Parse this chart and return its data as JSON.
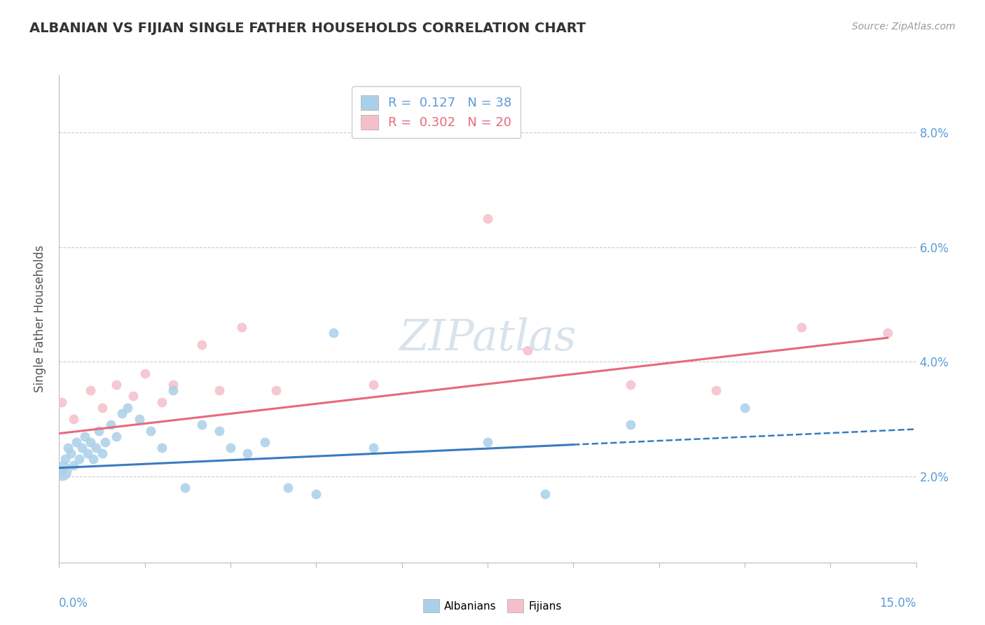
{
  "title": "ALBANIAN VS FIJIAN SINGLE FATHER HOUSEHOLDS CORRELATION CHART",
  "source": "Source: ZipAtlas.com",
  "ylabel": "Single Father Households",
  "legend_albanian": "R =  0.127   N = 38",
  "legend_fijian": "R =  0.302   N = 20",
  "xlim": [
    0,
    15
  ],
  "ylim": [
    0.5,
    9.0
  ],
  "yticks": [
    2,
    4,
    6,
    8
  ],
  "albanian_x": [
    0.05,
    0.1,
    0.15,
    0.2,
    0.25,
    0.3,
    0.35,
    0.4,
    0.45,
    0.5,
    0.55,
    0.6,
    0.65,
    0.7,
    0.75,
    0.8,
    0.9,
    1.0,
    1.1,
    1.2,
    1.4,
    1.6,
    1.8,
    2.0,
    2.2,
    2.5,
    2.8,
    3.0,
    3.3,
    3.6,
    4.0,
    4.5,
    4.8,
    5.5,
    7.5,
    8.5,
    10.0,
    12.0
  ],
  "albanian_y": [
    2.1,
    2.3,
    2.5,
    2.4,
    2.2,
    2.6,
    2.3,
    2.5,
    2.7,
    2.4,
    2.6,
    2.3,
    2.5,
    2.8,
    2.4,
    2.6,
    2.9,
    2.7,
    3.1,
    3.2,
    3.0,
    2.8,
    2.5,
    3.5,
    1.8,
    2.9,
    2.8,
    2.5,
    2.4,
    2.6,
    1.8,
    1.7,
    4.5,
    2.5,
    2.6,
    1.7,
    2.9,
    3.2
  ],
  "fijian_x": [
    0.05,
    0.25,
    0.55,
    0.75,
    1.0,
    1.3,
    1.5,
    1.8,
    2.0,
    2.5,
    2.8,
    3.2,
    3.8,
    5.5,
    7.5,
    8.2,
    10.0,
    11.5,
    13.0,
    14.5
  ],
  "fijian_y": [
    3.3,
    3.0,
    3.5,
    3.2,
    3.6,
    3.4,
    3.8,
    3.3,
    3.6,
    4.3,
    3.5,
    4.6,
    3.5,
    3.6,
    6.5,
    4.2,
    3.6,
    3.5,
    4.6,
    4.5
  ],
  "albanian_color": "#aacfe8",
  "fijian_color": "#f5bfca",
  "albanian_line_color": "#3a7bbf",
  "fijian_line_color": "#e8697a",
  "albanian_large_dot_x": 0.05,
  "albanian_large_dot_y": 2.1,
  "albanian_large_dot_size": 400,
  "watermark_text": "ZIPatlas",
  "dot_size": 100,
  "background_color": "#ffffff",
  "grid_color": "#cccccc",
  "fijian_line_x_start": 0,
  "fijian_line_x_solid_end": 14.5,
  "albanian_line_x_start": 0,
  "albanian_line_x_solid_end": 9.0,
  "albanian_line_x_dashed_end": 15
}
